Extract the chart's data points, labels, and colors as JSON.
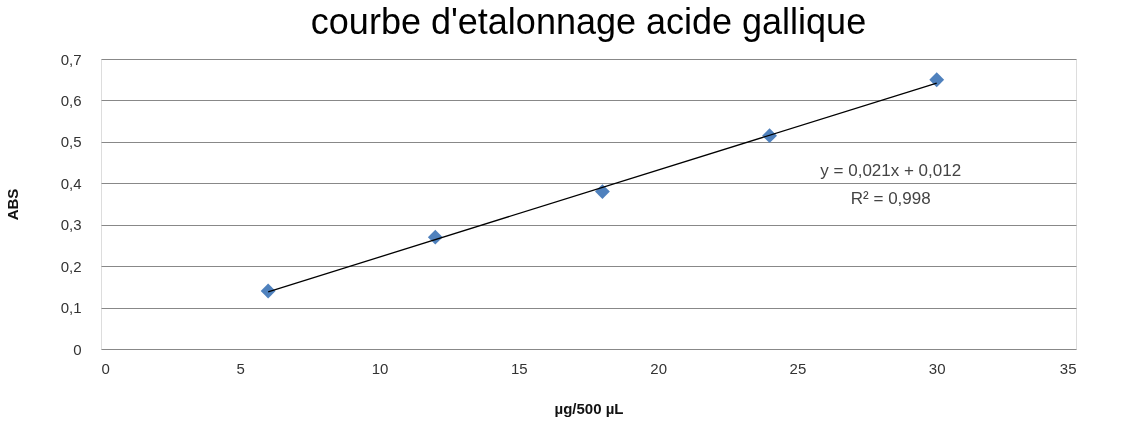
{
  "chart_data": {
    "type": "scatter",
    "title": "courbe d'etalonnage acide gallique",
    "xlabel": "µg/500 µL",
    "ylabel": "ABS",
    "x": [
      6,
      12,
      18,
      24,
      30
    ],
    "series": [
      {
        "type": "scatter",
        "color": "#4f81bd",
        "values": [
          0.14,
          0.27,
          0.38,
          0.515,
          0.65
        ],
        "marker": "diamond"
      },
      {
        "type": "line",
        "color": "#000000",
        "x": [
          6,
          30
        ],
        "values": [
          0.138,
          0.642
        ],
        "marker": "none",
        "line_style": "solid"
      }
    ],
    "xlim": [
      0,
      35
    ],
    "xticks": [
      0,
      5,
      10,
      15,
      20,
      25,
      30,
      35
    ],
    "ylim": [
      0,
      0.7
    ],
    "yticks": [
      0,
      {
        "value": 0.1,
        "label": "0,1"
      },
      {
        "value": 0.2,
        "label": "0,2"
      },
      {
        "value": 0.3,
        "label": "0,3"
      },
      {
        "value": 0.4,
        "label": "0,4"
      },
      {
        "value": 0.5,
        "label": "0,5"
      },
      {
        "value": 0.6,
        "label": "0,6"
      },
      {
        "value": 0.7,
        "label": "0,7"
      }
    ],
    "grid": "y",
    "annotations": [
      "y = 0,021x + 0,012",
      "R² = 0,998"
    ]
  }
}
